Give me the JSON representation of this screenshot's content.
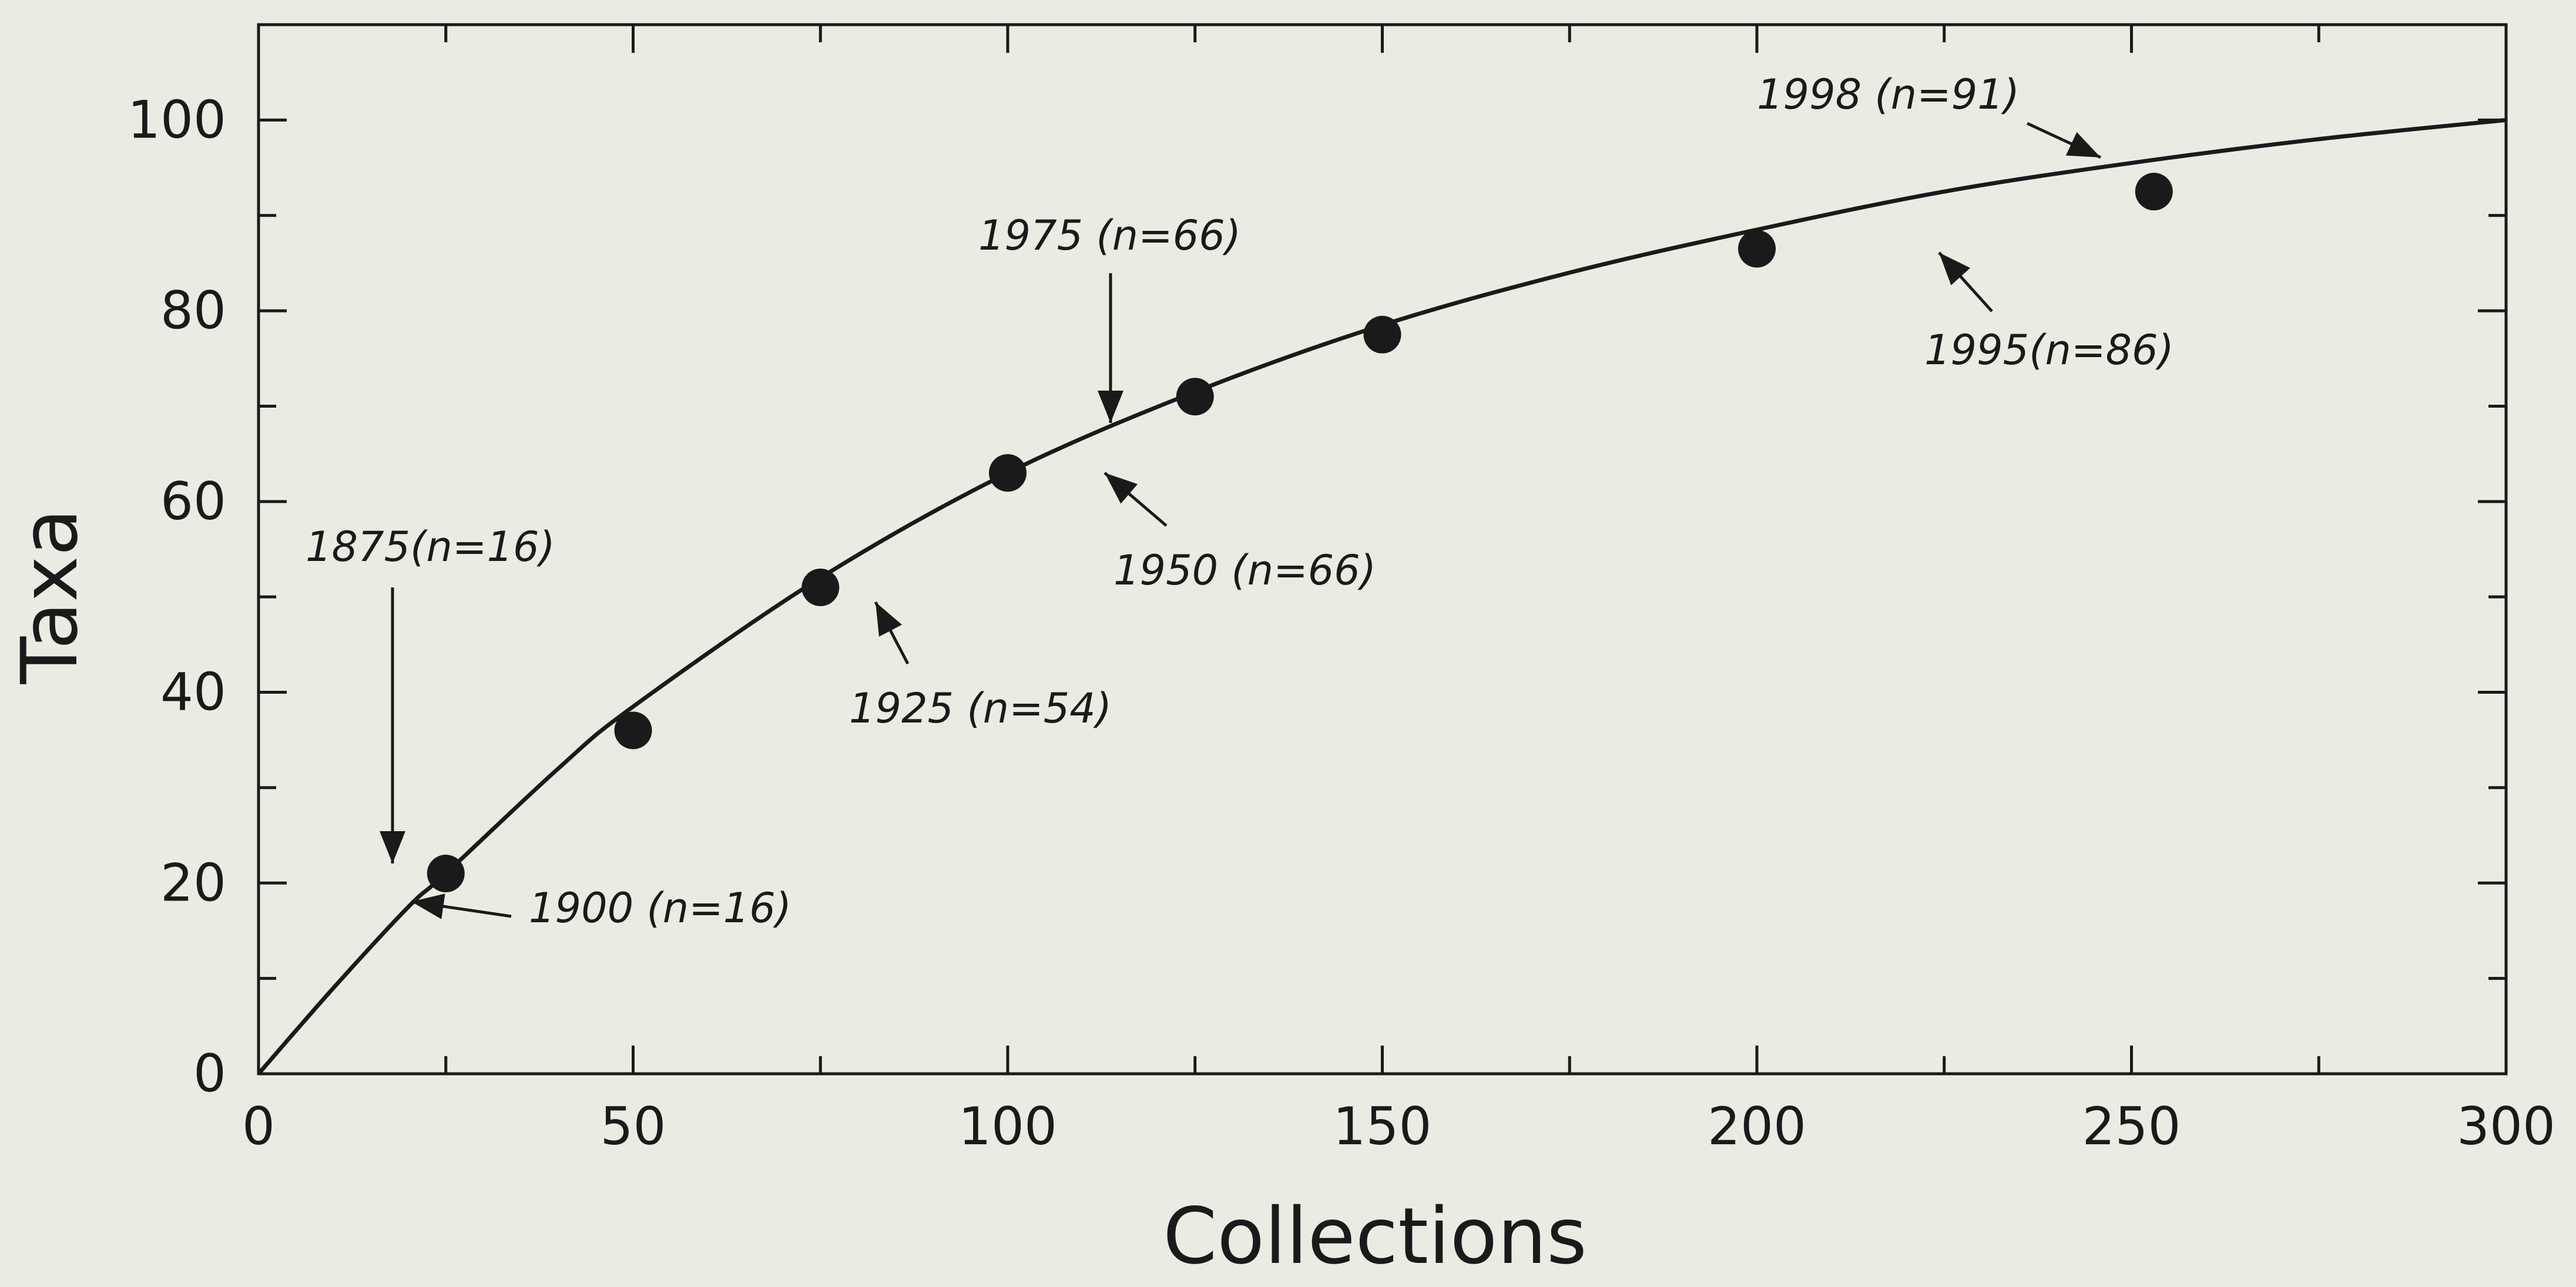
{
  "chart_data": {
    "type": "scatter",
    "title": "",
    "xlabel": "Collections",
    "ylabel": "Taxa",
    "xlim": [
      0,
      300
    ],
    "ylim": [
      0,
      110
    ],
    "x_ticks": [
      0,
      50,
      100,
      150,
      200,
      250,
      300
    ],
    "y_ticks": [
      0,
      20,
      40,
      60,
      80,
      100
    ],
    "grid": false,
    "points": [
      {
        "x": 25,
        "y": 21
      },
      {
        "x": 50,
        "y": 36
      },
      {
        "x": 75,
        "y": 51
      },
      {
        "x": 100,
        "y": 63
      },
      {
        "x": 125,
        "y": 71
      },
      {
        "x": 150,
        "y": 77.5
      },
      {
        "x": 200,
        "y": 86.5
      },
      {
        "x": 253,
        "y": 92.5
      }
    ],
    "fit_curve": {
      "x": [
        0,
        10,
        20,
        25,
        40,
        50,
        75,
        100,
        125,
        150,
        175,
        200,
        225,
        250,
        275,
        300
      ],
      "y": [
        0,
        9,
        17.5,
        21,
        32,
        38.5,
        52,
        63,
        71.5,
        78.5,
        84,
        88.5,
        92.5,
        95.5,
        98,
        100
      ]
    },
    "annotations": [
      {
        "text": "1875(n=16)",
        "x": 19,
        "y": 21
      },
      {
        "text": "1900 (n=16)",
        "x": 20,
        "y": 17
      },
      {
        "text": "1925 (n=54)",
        "x": 79,
        "y": 50
      },
      {
        "text": "1950 (n=66)",
        "x": 113,
        "y": 64
      },
      {
        "text": "1975 (n=66)",
        "x": 113,
        "y": 67
      },
      {
        "text": "1995(n=86)",
        "x": 222,
        "y": 88
      },
      {
        "text": "1998 (n=91)",
        "x": 245,
        "y": 96
      }
    ]
  },
  "colors": {
    "background": "#ecebe3",
    "ink": "#1a1a1a"
  }
}
